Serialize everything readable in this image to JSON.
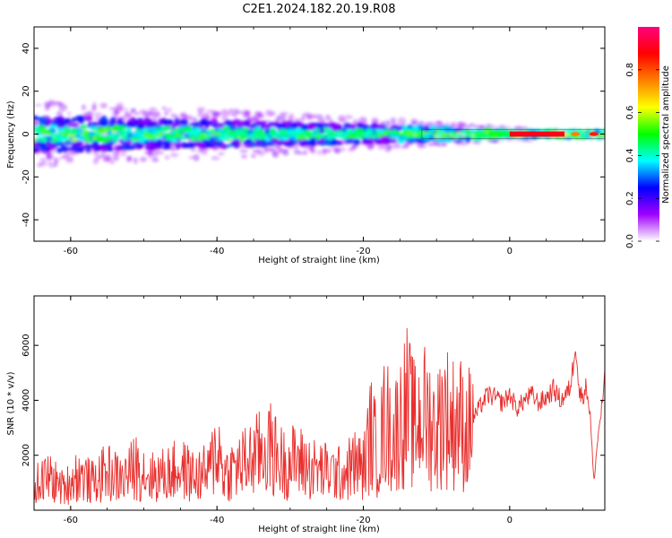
{
  "title": "C2E1.2024.182.20.19.R08",
  "colors": {
    "snr_line": "#e8302e",
    "frame": "#000000"
  },
  "chart_data": [
    {
      "type": "heatmap",
      "xlabel": "Height of straight line (km)",
      "ylabel": "Frequency (Hz)",
      "xlim": [
        -65,
        13
      ],
      "ylim": [
        -50,
        50
      ],
      "xticks": [
        -60,
        -40,
        -20,
        0
      ],
      "yticks": [
        40,
        20,
        0,
        -20,
        -40
      ],
      "grid": false,
      "description_values": {
        "band_center_hz": 0,
        "noise_band_halfwidth_hz": [
          [
            -65,
            8
          ],
          [
            -40,
            6
          ],
          [
            -20,
            4
          ],
          [
            -10,
            3
          ],
          [
            0,
            1.5
          ],
          [
            13,
            1.5
          ]
        ],
        "peak_amplitude_segment_km": [
          0,
          7.5
        ],
        "secondary_peaks_km": [
          [
            9,
            0.75
          ],
          [
            11.5,
            0.85
          ]
        ]
      },
      "colorbar": {
        "label": "Normalized spectral amplitude",
        "ticks": [
          "0.0",
          "0.2",
          "0.4",
          "0.6",
          "0.8"
        ],
        "range": [
          0,
          1
        ],
        "colormap": [
          "#ffffff",
          "#a000ff",
          "#0000ff",
          "#00ffff",
          "#00ff00",
          "#ffff00",
          "#ff8000",
          "#ff0000",
          "#ff0080"
        ]
      }
    },
    {
      "type": "line",
      "xlabel": "Height of straight line (km)",
      "ylabel": "SNR (10 * v/v)",
      "xlim": [
        -65,
        13
      ],
      "ylim": [
        0,
        7800
      ],
      "xticks": [
        -60,
        -40,
        -20,
        0
      ],
      "yticks": [
        2000,
        4000,
        6000
      ],
      "series": [
        {
          "x": [
            -65,
            -63,
            -61,
            -59,
            -57,
            -55,
            -53,
            -51,
            -49,
            -47,
            -45,
            -43,
            -41,
            -40,
            -39,
            -37,
            -35,
            -33,
            -31,
            -29,
            -27,
            -25,
            -23,
            -21,
            -20,
            -19,
            -18,
            -17,
            -16,
            -15,
            -14,
            -13,
            -12,
            -11,
            -10,
            -9,
            -8,
            -7,
            -6,
            -5,
            -4,
            -3,
            -2,
            -1,
            0,
            1,
            2,
            3,
            4,
            5,
            6,
            7,
            8,
            8.5,
            9,
            9.5,
            10,
            10.5,
            11,
            11.5,
            12,
            12.5,
            13
          ],
          "y": [
            900,
            1200,
            800,
            1300,
            1000,
            1400,
            1100,
            1600,
            1200,
            1300,
            1500,
            1200,
            1400,
            2400,
            1300,
            1600,
            1900,
            2300,
            1700,
            1800,
            1500,
            1400,
            1300,
            1700,
            1500,
            2800,
            2000,
            3300,
            2600,
            3200,
            3800,
            3000,
            3500,
            3300,
            2800,
            3700,
            3100,
            3400,
            2700,
            3300,
            3800,
            4200,
            4100,
            3900,
            4200,
            3700,
            4000,
            4200,
            3900,
            4100,
            4400,
            4000,
            4300,
            4800,
            6300,
            4200,
            4200,
            4500,
            3500,
            1000,
            2500,
            3600,
            4700
          ]
        }
      ]
    }
  ]
}
